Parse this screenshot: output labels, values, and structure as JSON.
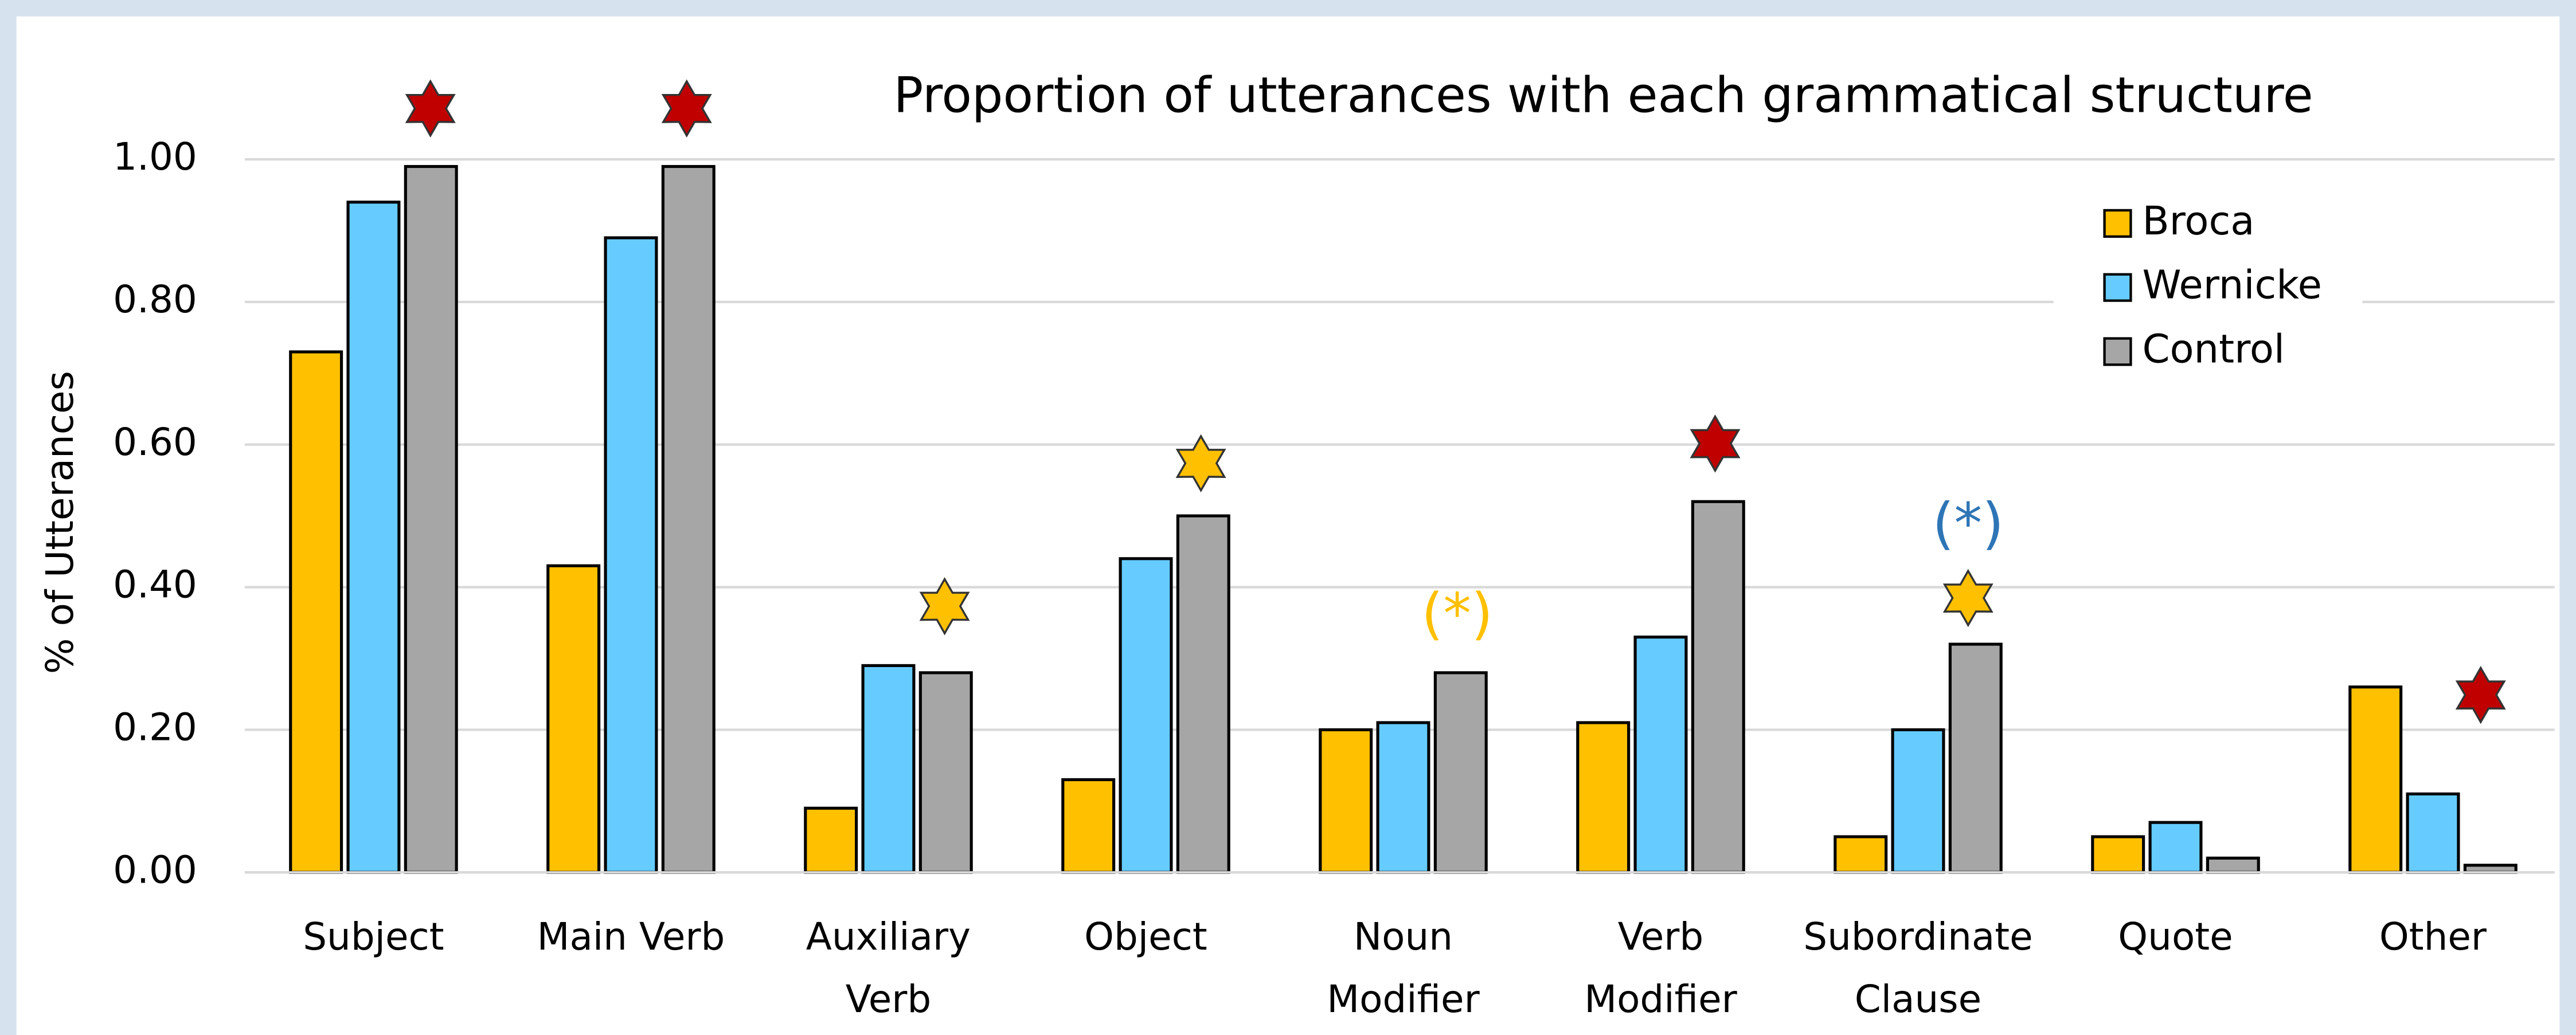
{
  "chart_data": {
    "type": "bar",
    "title": "Proportion of utterances with each grammatical structure",
    "y_label": "% of Utterances",
    "categories": [
      "Subject",
      "Main Verb",
      "Auxiliary\nVerb",
      "Object",
      "Noun\nModifier",
      "Verb\nModifier",
      "Subordinate\nClause",
      "Quote",
      "Other"
    ],
    "series": [
      {
        "name": "Broca",
        "color": "#ffc000",
        "values": [
          0.73,
          0.43,
          0.09,
          0.13,
          0.2,
          0.21,
          0.05,
          0.05,
          0.26
        ]
      },
      {
        "name": "Wernicke",
        "color": "#66ccff",
        "values": [
          0.94,
          0.89,
          0.29,
          0.44,
          0.21,
          0.33,
          0.2,
          0.07,
          0.11
        ]
      },
      {
        "name": "Control",
        "color": "#a6a6a6",
        "values": [
          0.99,
          0.99,
          0.28,
          0.5,
          0.28,
          0.52,
          0.32,
          0.02,
          0.01
        ]
      }
    ],
    "ylim": [
      0,
      1.0
    ],
    "yticks": [
      {
        "value": 0,
        "label": "0.00"
      },
      {
        "value": 0.2,
        "label": "0.20"
      },
      {
        "value": 0.4,
        "label": "0.40"
      },
      {
        "value": 0.6,
        "label": "0.60"
      },
      {
        "value": 0.8,
        "label": "0.80"
      },
      {
        "value": 1.0,
        "label": "1.00"
      }
    ],
    "grid": true,
    "legend": "upper right",
    "annotations": [
      {
        "text": "(*)",
        "color": "#ffc000"
      },
      {
        "text": "(*)",
        "color": "#2e75b6"
      }
    ]
  }
}
